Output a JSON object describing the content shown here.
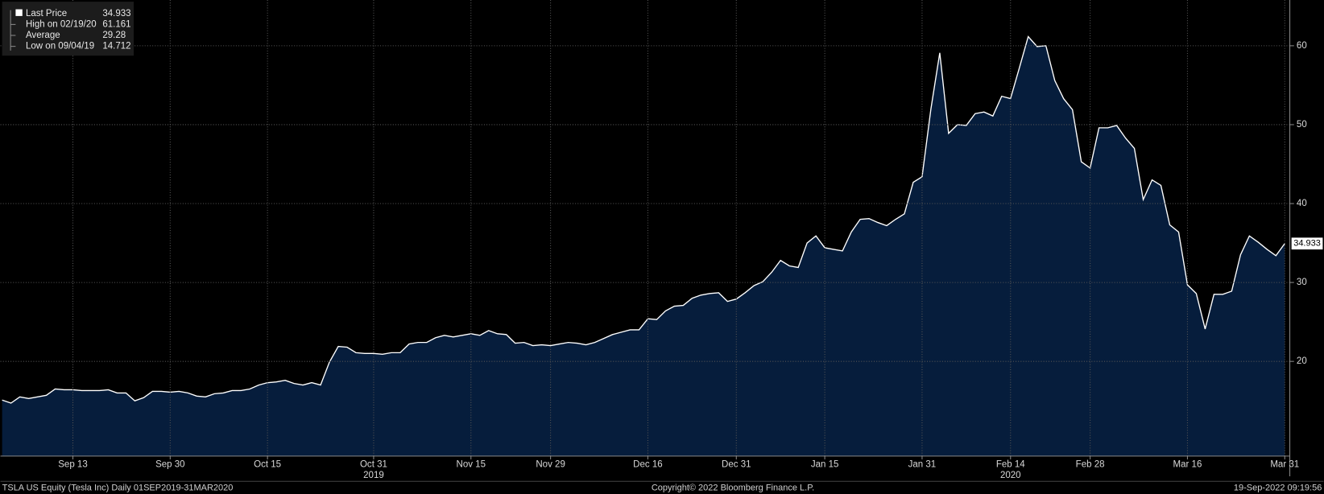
{
  "chart_data": {
    "type": "area",
    "footer_left": "TSLA US Equity (Tesla Inc)  Daily 01SEP2019-31MAR2020",
    "footer_center": "Copyright© 2022 Bloomberg Finance L.P.",
    "footer_right": "19-Sep-2022 09:19:56",
    "stats": [
      {
        "label": "High on 02/19/20",
        "value": 61.161
      },
      {
        "label": "Average",
        "value": 29.28
      },
      {
        "label": "Low on 09/04/19",
        "value": 14.712
      }
    ],
    "x": [
      "2019-09-03",
      "2019-09-04",
      "2019-09-05",
      "2019-09-06",
      "2019-09-09",
      "2019-09-10",
      "2019-09-11",
      "2019-09-12",
      "2019-09-13",
      "2019-09-16",
      "2019-09-17",
      "2019-09-18",
      "2019-09-19",
      "2019-09-20",
      "2019-09-23",
      "2019-09-24",
      "2019-09-25",
      "2019-09-26",
      "2019-09-27",
      "2019-09-30",
      "2019-10-01",
      "2019-10-02",
      "2019-10-03",
      "2019-10-04",
      "2019-10-07",
      "2019-10-08",
      "2019-10-09",
      "2019-10-10",
      "2019-10-11",
      "2019-10-14",
      "2019-10-15",
      "2019-10-16",
      "2019-10-17",
      "2019-10-18",
      "2019-10-21",
      "2019-10-22",
      "2019-10-23",
      "2019-10-24",
      "2019-10-25",
      "2019-10-28",
      "2019-10-29",
      "2019-10-30",
      "2019-10-31",
      "2019-11-01",
      "2019-11-04",
      "2019-11-05",
      "2019-11-06",
      "2019-11-07",
      "2019-11-08",
      "2019-11-11",
      "2019-11-12",
      "2019-11-13",
      "2019-11-14",
      "2019-11-15",
      "2019-11-18",
      "2019-11-19",
      "2019-11-20",
      "2019-11-21",
      "2019-11-22",
      "2019-11-25",
      "2019-11-26",
      "2019-11-27",
      "2019-11-29",
      "2019-12-02",
      "2019-12-03",
      "2019-12-04",
      "2019-12-05",
      "2019-12-06",
      "2019-12-09",
      "2019-12-10",
      "2019-12-11",
      "2019-12-12",
      "2019-12-13",
      "2019-12-16",
      "2019-12-17",
      "2019-12-18",
      "2019-12-19",
      "2019-12-20",
      "2019-12-23",
      "2019-12-24",
      "2019-12-26",
      "2019-12-27",
      "2019-12-30",
      "2019-12-31",
      "2020-01-02",
      "2020-01-03",
      "2020-01-06",
      "2020-01-07",
      "2020-01-08",
      "2020-01-09",
      "2020-01-10",
      "2020-01-13",
      "2020-01-14",
      "2020-01-15",
      "2020-01-16",
      "2020-01-17",
      "2020-01-21",
      "2020-01-22",
      "2020-01-23",
      "2020-01-24",
      "2020-01-27",
      "2020-01-28",
      "2020-01-29",
      "2020-01-30",
      "2020-01-31",
      "2020-02-03",
      "2020-02-04",
      "2020-02-05",
      "2020-02-06",
      "2020-02-07",
      "2020-02-10",
      "2020-02-11",
      "2020-02-12",
      "2020-02-13",
      "2020-02-14",
      "2020-02-18",
      "2020-02-19",
      "2020-02-20",
      "2020-02-21",
      "2020-02-24",
      "2020-02-25",
      "2020-02-26",
      "2020-02-27",
      "2020-02-28",
      "2020-03-02",
      "2020-03-03",
      "2020-03-04",
      "2020-03-05",
      "2020-03-06",
      "2020-03-09",
      "2020-03-10",
      "2020-03-11",
      "2020-03-12",
      "2020-03-13",
      "2020-03-16",
      "2020-03-17",
      "2020-03-18",
      "2020-03-19",
      "2020-03-20",
      "2020-03-23",
      "2020-03-24",
      "2020-03-25",
      "2020-03-26",
      "2020-03-27",
      "2020-03-30",
      "2020-03-31"
    ],
    "series": [
      {
        "name": "Last Price",
        "color": "#ffffff",
        "fill": "#061d3c",
        "values": [
          15.1,
          14.712,
          15.5,
          15.3,
          15.5,
          15.7,
          16.5,
          16.4,
          16.4,
          16.3,
          16.3,
          16.3,
          16.4,
          16.0,
          16.0,
          15.0,
          15.4,
          16.2,
          16.2,
          16.1,
          16.2,
          16.0,
          15.6,
          15.5,
          15.9,
          16.0,
          16.3,
          16.3,
          16.5,
          17.0,
          17.3,
          17.4,
          17.6,
          17.2,
          17.0,
          17.3,
          17.0,
          19.9,
          21.9,
          21.8,
          21.1,
          21.0,
          21.0,
          20.9,
          21.1,
          21.1,
          22.2,
          22.4,
          22.4,
          23.0,
          23.3,
          23.1,
          23.3,
          23.5,
          23.3,
          23.9,
          23.5,
          23.4,
          22.3,
          22.4,
          22.0,
          22.1,
          22.0,
          22.2,
          22.4,
          22.3,
          22.1,
          22.4,
          22.9,
          23.4,
          23.7,
          24.0,
          24.0,
          25.4,
          25.3,
          26.4,
          27.0,
          27.1,
          28.0,
          28.4,
          28.6,
          28.7,
          27.6,
          27.9,
          28.7,
          29.6,
          30.1,
          31.3,
          32.8,
          32.1,
          31.9,
          35.0,
          35.9,
          34.4,
          34.2,
          34.0,
          36.4,
          38.0,
          38.1,
          37.6,
          37.2,
          38.0,
          38.7,
          42.7,
          43.4,
          52.0,
          59.1,
          48.9,
          50.0,
          49.9,
          51.4,
          51.6,
          51.1,
          53.6,
          53.3,
          57.2,
          61.161,
          59.9,
          60.0,
          55.6,
          53.3,
          51.9,
          45.3,
          44.5,
          49.6,
          49.6,
          49.9,
          48.3,
          47.0,
          40.5,
          43.0,
          42.3,
          37.3,
          36.4,
          29.7,
          28.6,
          24.1,
          28.5,
          28.5,
          28.9,
          33.5,
          35.9,
          35.1,
          34.2,
          33.4,
          34.933
        ]
      }
    ],
    "ylim": [
      8,
      65.8
    ],
    "yticks": [
      20,
      30,
      40,
      50,
      60
    ],
    "xticks": [
      {
        "value": "2019-09-13",
        "label": "Sep 13"
      },
      {
        "value": "2019-09-30",
        "label": "Sep 30"
      },
      {
        "value": "2019-10-15",
        "label": "Oct 15"
      },
      {
        "value": "2019-10-31",
        "label": "Oct 31"
      },
      {
        "value": "2019-11-15",
        "label": "Nov 15"
      },
      {
        "value": "2019-11-29",
        "label": "Nov 29"
      },
      {
        "value": "2019-12-16",
        "label": "Dec 16"
      },
      {
        "value": "2019-12-31",
        "label": "Dec 31"
      },
      {
        "value": "2020-01-15",
        "label": "Jan 15"
      },
      {
        "value": "2020-01-31",
        "label": "Jan 31"
      },
      {
        "value": "2020-02-14",
        "label": "Feb 14"
      },
      {
        "value": "2020-02-28",
        "label": "Feb 28"
      },
      {
        "value": "2020-03-16",
        "label": "Mar 16"
      },
      {
        "value": "2020-03-31",
        "label": "Mar 31"
      }
    ],
    "year_labels": [
      {
        "value": "2019-10-31",
        "label": "2019"
      },
      {
        "value": "2020-02-14",
        "label": "2020"
      }
    ],
    "grid": true
  }
}
